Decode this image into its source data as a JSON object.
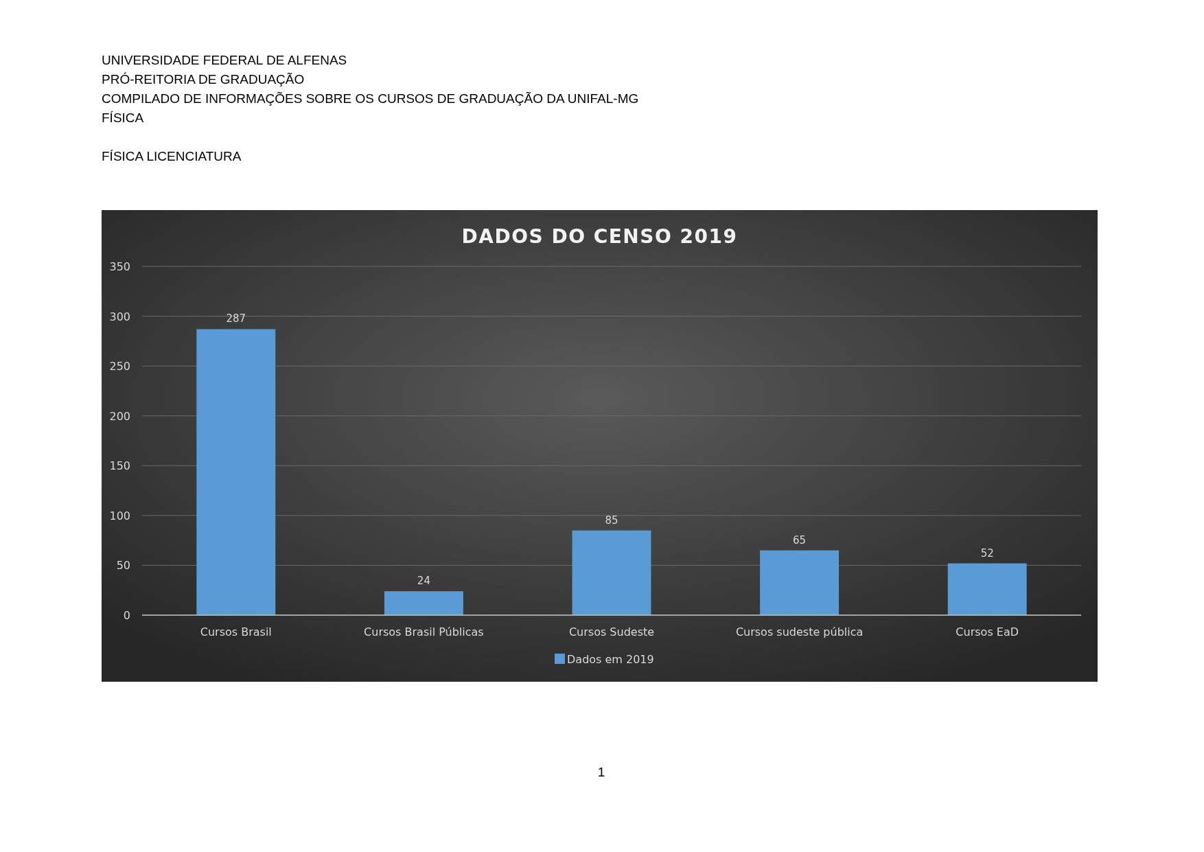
{
  "chart_data": {
    "type": "bar",
    "title": "DADOS DO CENSO 2019",
    "annotations": [
      "UNIVERSIDADE FEDERAL DE ALFENAS",
      "PRÓ-REITORIA DE GRADUAÇÃO",
      "COMPILADO DE INFORMAÇÕES SOBRE OS CURSOS DE GRADUAÇÃO DA UNIFAL-MG",
      "FÍSICA",
      "FÍSICA LICENCIATURA",
      "1"
    ],
    "categories": [
      "Cursos Brasil",
      "Cursos Brasil Públicas",
      "Cursos Sudeste",
      "Cursos sudeste pública",
      "Cursos EaD"
    ],
    "series": [
      {
        "name": "Dados em 2019",
        "color": "#5b9bd5",
        "values": [
          287,
          24,
          85,
          65,
          52
        ]
      }
    ],
    "ylim": [
      0,
      350
    ],
    "yticks": [
      0,
      50,
      100,
      150,
      200,
      250,
      300,
      350
    ],
    "grid": "y",
    "data_labels": true,
    "legend": "bottom"
  }
}
